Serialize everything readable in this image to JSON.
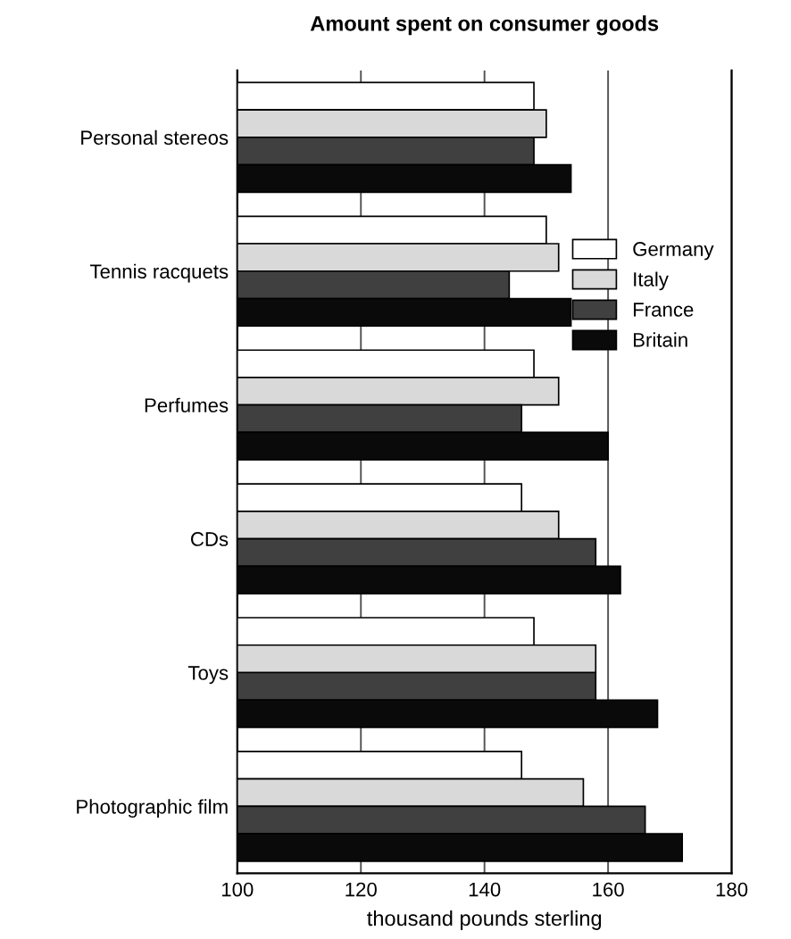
{
  "chart_data": {
    "type": "bar",
    "orientation": "horizontal",
    "title": "Amount spent on consumer goods",
    "xlabel": "thousand pounds sterling",
    "categories": [
      "Personal stereos",
      "Tennis racquets",
      "Perfumes",
      "CDs",
      "Toys",
      "Photographic film"
    ],
    "series": [
      {
        "name": "Germany",
        "color": "#ffffff",
        "values": [
          148,
          150,
          148,
          146,
          148,
          146
        ]
      },
      {
        "name": "Italy",
        "color": "#d9d9d9",
        "values": [
          150,
          152,
          152,
          152,
          158,
          156
        ]
      },
      {
        "name": "France",
        "color": "#404040",
        "values": [
          148,
          144,
          146,
          158,
          158,
          166
        ]
      },
      {
        "name": "Britain",
        "color": "#0a0a0a",
        "values": [
          154,
          154,
          160,
          162,
          168,
          172
        ]
      }
    ],
    "xlim": [
      100,
      180
    ],
    "xticks": [
      100,
      120,
      140,
      160,
      180
    ],
    "grid": "x",
    "legend": "right"
  }
}
